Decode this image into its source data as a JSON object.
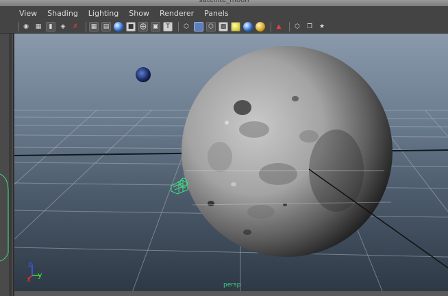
{
  "window": {
    "title": "satellite_moon"
  },
  "menubar": {
    "items": [
      "View",
      "Shading",
      "Lighting",
      "Show",
      "Renderer",
      "Panels"
    ]
  },
  "viewport": {
    "camera_label": "persp",
    "axis": {
      "z_label": "z",
      "x_label": "x",
      "y_label": "y"
    },
    "colors": {
      "selection": "#3fe07f",
      "axis_y": "#39e239",
      "axis_x": "#e33030",
      "axis_z": "#3b5cff"
    }
  }
}
